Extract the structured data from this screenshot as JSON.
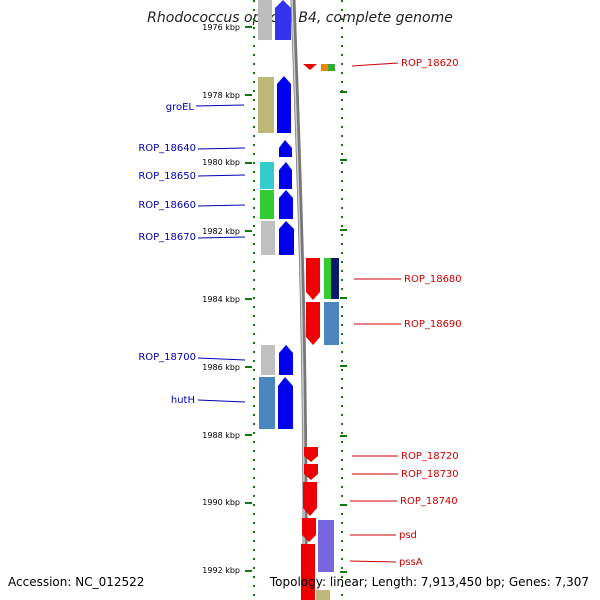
{
  "title": "Rhodococcus opacus B4, complete genome",
  "accession": "Accession: NC_012522",
  "topology": "Topology: linear; Length: 7,913,450 bp; Genes: 7,307",
  "colors": {
    "left_label": "#0000b4",
    "right_label": "#cc0000",
    "tick": "#117711",
    "axis": "#888888"
  },
  "ruler": [
    {
      "label": "1976 kbp"
    },
    {
      "label": "1978 kbp"
    },
    {
      "label": "1980 kbp"
    },
    {
      "label": "1982 kbp"
    },
    {
      "label": "1984 kbp"
    },
    {
      "label": "1986 kbp"
    },
    {
      "label": "1988 kbp"
    },
    {
      "label": "1990 kbp"
    },
    {
      "label": "1992 kbp"
    }
  ],
  "left_genes": [
    {
      "name": "groEL"
    },
    {
      "name": "ROP_18640"
    },
    {
      "name": "ROP_18650"
    },
    {
      "name": "ROP_18660"
    },
    {
      "name": "ROP_18670"
    },
    {
      "name": "ROP_18700"
    },
    {
      "name": "hutH"
    }
  ],
  "right_genes": [
    {
      "name": "ROP_18620"
    },
    {
      "name": "ROP_18680"
    },
    {
      "name": "ROP_18690"
    },
    {
      "name": "ROP_18720"
    },
    {
      "name": "ROP_18730"
    },
    {
      "name": "ROP_18740"
    },
    {
      "name": "psd"
    },
    {
      "name": "pssA"
    }
  ]
}
